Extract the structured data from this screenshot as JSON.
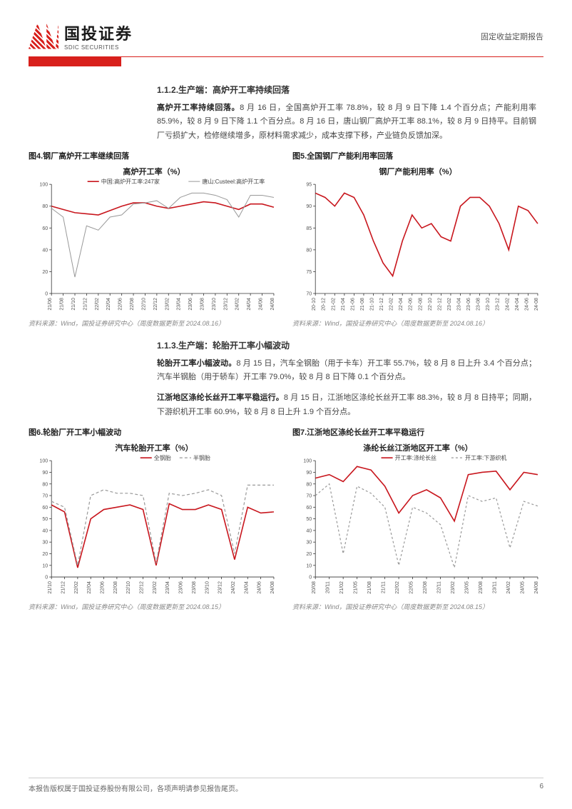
{
  "header": {
    "logo_cn": "国投证券",
    "logo_en": "SDIC SECURITIES",
    "report_type": "固定收益定期报告"
  },
  "section_1_1_2": {
    "heading": "1.1.2.生产端：高炉开工率持续回落",
    "para": "高炉开工率持续回落。8 月 16 日，全国高炉开工率 78.8%，较 8 月 9 日下降 1.4 个百分点；产能利用率 85.9%，较 8 月 9 日下降 1.1 个百分点。8 月 16 日，唐山钢厂高炉开工率 88.1%，较 8 月 9 日持平。目前钢厂亏损扩大，检修继续增多，原材料需求减少，成本支撑下移，产业链负反馈加深。",
    "lead": "高炉开工率持续回落。"
  },
  "fig4": {
    "caption": "图4.钢厂高炉开工率继续回落",
    "chart_title": "高炉开工率（%）",
    "legend": [
      "中国:高炉开工率:247家",
      "唐山:Custeel:高炉开工率"
    ],
    "colors": [
      "#c8161d",
      "#999999"
    ],
    "line_widths": [
      1.6,
      1.0
    ],
    "ylim": [
      0,
      100
    ],
    "ytick_step": 20,
    "x_labels": [
      "21/06",
      "21/08",
      "21/10",
      "21/12",
      "22/02",
      "22/04",
      "22/06",
      "22/08",
      "22/10",
      "22/12",
      "23/02",
      "23/04",
      "23/06",
      "23/08",
      "23/10",
      "23/12",
      "24/02",
      "24/04",
      "24/06",
      "24/08"
    ],
    "series": {
      "cn247": [
        80,
        77,
        74,
        73,
        72,
        76,
        80,
        83,
        83,
        80,
        78,
        80,
        82,
        84,
        83,
        80,
        77,
        82,
        82,
        79
      ],
      "tangshan": [
        78,
        70,
        15,
        62,
        58,
        70,
        72,
        82,
        83,
        85,
        78,
        88,
        92,
        92,
        90,
        86,
        70,
        90,
        90,
        88
      ]
    },
    "source": "资料来源：Wind，国投证券研究中心（周度数据更新至 2024.08.16）"
  },
  "fig5": {
    "caption": "图5.全国钢厂产能利用率回落",
    "chart_title": "钢厂产能利用率（%）",
    "color": "#c8161d",
    "line_width": 1.6,
    "ylim": [
      70,
      95
    ],
    "ytick_step": 5,
    "x_labels": [
      "20-10",
      "20-12",
      "21-02",
      "21-04",
      "21-06",
      "21-08",
      "21-10",
      "21-12",
      "22-02",
      "22-04",
      "22-06",
      "22-08",
      "22-10",
      "22-12",
      "23-02",
      "23-04",
      "23-06",
      "23-08",
      "23-10",
      "23-12",
      "24-02",
      "24-04",
      "24-06",
      "24-08"
    ],
    "series": {
      "util": [
        93,
        92,
        90,
        93,
        92,
        88,
        82,
        77,
        74,
        82,
        88,
        85,
        86,
        83,
        82,
        90,
        92,
        92,
        90,
        86,
        80,
        90,
        89,
        86
      ]
    },
    "source": "资料来源：Wind，国投证券研究中心（周度数据更新至 2024.08.16）"
  },
  "section_1_1_3": {
    "heading": "1.1.3.生产端：轮胎开工率小幅波动",
    "para1": "轮胎开工率小幅波动。8 月 15 日，汽车全钢胎（用于卡车）开工率 55.7%，较 8 月 8 日上升 3.4 个百分点；汽车半钢胎（用于轿车）开工率 79.0%，较 8 月 8 日下降 0.1 个百分点。",
    "lead1": "轮胎开工率小幅波动。",
    "para2": "江浙地区涤纶长丝开工率平稳运行。8 月 15 日，江浙地区涤纶长丝开工率 88.3%，较 8 月 8 日持平；同期，下游织机开工率 60.9%，较 8 月 8 日上升 1.9 个百分点。",
    "lead2": "江浙地区涤纶长丝开工率平稳运行。"
  },
  "fig6": {
    "caption": "图6.轮胎厂开工率小幅波动",
    "chart_title": "汽车轮胎开工率（%）",
    "legend": [
      "全钢胎",
      "半钢胎"
    ],
    "colors": [
      "#c8161d",
      "#999999"
    ],
    "line_styles": [
      "solid",
      "4,3"
    ],
    "line_widths": [
      1.6,
      1.2
    ],
    "ylim": [
      0,
      100
    ],
    "ytick_step": 10,
    "x_labels": [
      "21/10",
      "21/12",
      "22/02",
      "22/04",
      "22/06",
      "22/08",
      "22/10",
      "22/12",
      "23/02",
      "23/04",
      "23/06",
      "23/08",
      "23/10",
      "23/12",
      "24/02",
      "24/04",
      "24/06",
      "24/08"
    ],
    "series": {
      "full": [
        62,
        56,
        8,
        50,
        58,
        60,
        62,
        58,
        10,
        63,
        58,
        58,
        62,
        58,
        15,
        60,
        55,
        56
      ],
      "semi": [
        65,
        60,
        10,
        70,
        75,
        72,
        72,
        70,
        12,
        72,
        70,
        72,
        75,
        70,
        20,
        79,
        79,
        79
      ]
    },
    "source": "资料来源：Wind，国投证券研究中心（周度数据更新至 2024.08.15）"
  },
  "fig7": {
    "caption": "图7.江浙地区涤纶长丝开工率平稳运行",
    "chart_title": "涤纶长丝江浙地区开工率（%）",
    "legend": [
      "开工率:涤纶长丝",
      "开工率:下游织机"
    ],
    "colors": [
      "#c8161d",
      "#999999"
    ],
    "line_styles": [
      "solid",
      "3,3"
    ],
    "line_widths": [
      1.6,
      1.2
    ],
    "ylim": [
      0,
      100
    ],
    "ytick_step": 10,
    "x_labels": [
      "20/08",
      "20/11",
      "21/02",
      "21/05",
      "21/08",
      "21/11",
      "22/02",
      "22/05",
      "22/08",
      "22/11",
      "23/02",
      "23/05",
      "23/08",
      "23/11",
      "24/02",
      "24/05",
      "24/08"
    ],
    "series": {
      "poly": [
        85,
        88,
        82,
        95,
        92,
        78,
        55,
        70,
        75,
        68,
        48,
        88,
        90,
        91,
        75,
        90,
        88
      ],
      "loom": [
        70,
        80,
        20,
        78,
        72,
        60,
        10,
        60,
        55,
        45,
        8,
        70,
        65,
        68,
        25,
        65,
        61
      ]
    },
    "source": "资料来源：Wind，国投证券研究中心（周度数据更新至 2024.08.15）"
  },
  "footer": {
    "disclaimer": "本报告版权属于国投证券股份有限公司，各项声明请参见报告尾页。",
    "page_no": "6"
  }
}
